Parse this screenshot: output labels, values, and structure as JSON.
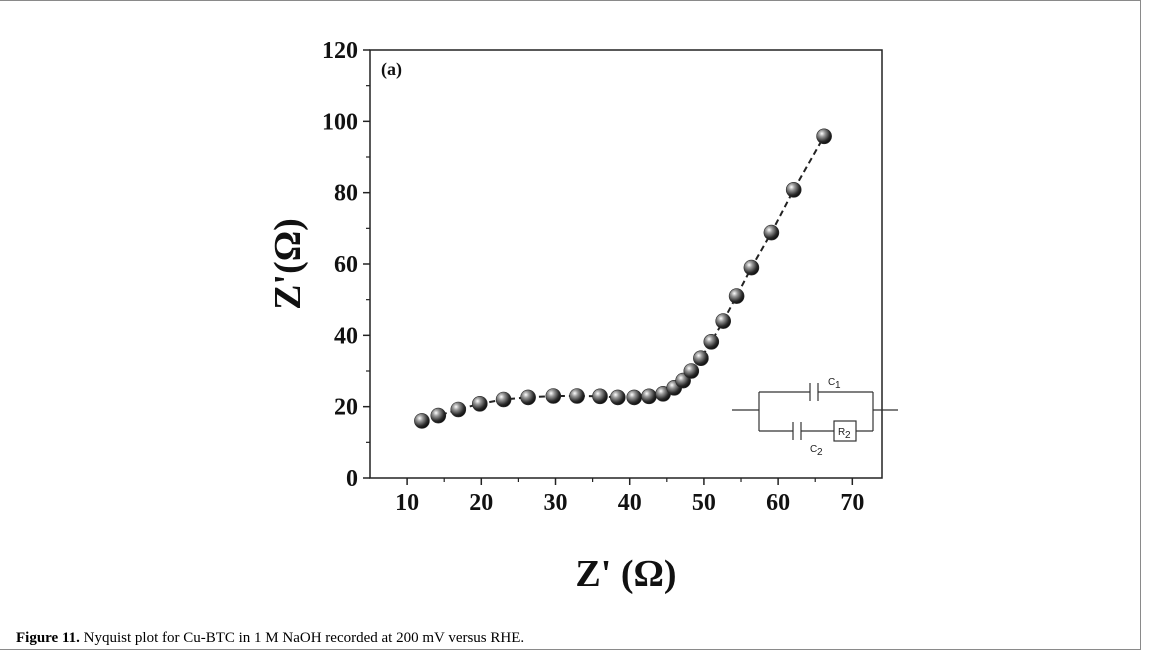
{
  "caption": {
    "label": "Figure 11.",
    "text": " Nyquist plot for Cu-BTC in 1 M NaOH recorded at 200 mV versus RHE."
  },
  "chart_data": {
    "type": "scatter",
    "panel_label": "(a)",
    "xlabel": "Z' (Ω)",
    "ylabel": "Z'(Ω)",
    "xlim": [
      5,
      74
    ],
    "ylim": [
      0,
      120
    ],
    "xticks": [
      10,
      20,
      30,
      40,
      50,
      60,
      70
    ],
    "yticks": [
      0,
      20,
      40,
      60,
      80,
      100,
      120
    ],
    "grid": false,
    "marker_color": "#2b2b2b",
    "line_style": "dashed",
    "series": [
      {
        "x": [
          12.0,
          14.2,
          16.9,
          19.8,
          23.0,
          26.3,
          29.7,
          32.9,
          36.0,
          38.4,
          40.6,
          42.6,
          44.5,
          46.0,
          47.2,
          48.3,
          49.6,
          51.0,
          52.6,
          54.4,
          56.4,
          59.1,
          62.1,
          66.2
        ],
        "y": [
          16,
          17.5,
          19.2,
          20.8,
          22.0,
          22.6,
          23.0,
          23.0,
          22.9,
          22.6,
          22.6,
          22.9,
          23.6,
          25.3,
          27.3,
          30.0,
          33.6,
          38.2,
          44.0,
          51.0,
          59.0,
          68.8,
          80.8,
          95.8
        ]
      }
    ],
    "inset_circuit": {
      "labels": [
        "C",
        "1",
        "C",
        "2",
        "R",
        "2"
      ]
    }
  }
}
